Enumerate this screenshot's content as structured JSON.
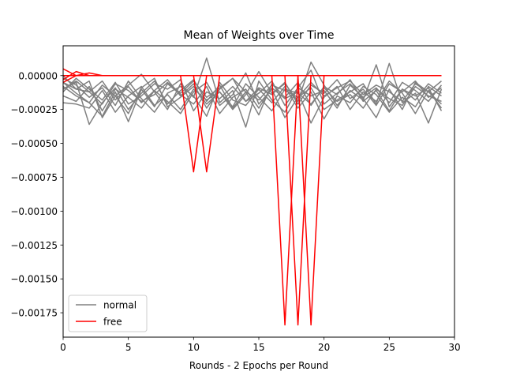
{
  "chart_data": {
    "type": "line",
    "title": "Mean of Weights over Time",
    "xlabel": "Rounds - 2 Epochs per Round",
    "ylabel": "",
    "xlim": [
      0,
      30
    ],
    "ylim": [
      -0.00193,
      0.00022
    ],
    "xticks": [
      0,
      5,
      10,
      15,
      20,
      25,
      30
    ],
    "xtick_labels": [
      "0",
      "5",
      "10",
      "15",
      "20",
      "25",
      "30"
    ],
    "yticks": [
      0.0,
      -0.00025,
      -0.0005,
      -0.00075,
      -0.001,
      -0.00125,
      -0.0015,
      -0.00175
    ],
    "ytick_labels": [
      "0.00000",
      "−0.00025",
      "−0.00050",
      "−0.00075",
      "−0.00100",
      "−0.00125",
      "−0.00150",
      "−0.00175"
    ],
    "grid": false,
    "legend": {
      "placement": "lower-left",
      "entries": [
        {
          "label": "normal",
          "color": "#808080"
        },
        {
          "label": "free",
          "color": "#ff0000"
        }
      ]
    },
    "x": [
      0,
      1,
      2,
      3,
      4,
      5,
      6,
      7,
      8,
      9,
      10,
      11,
      12,
      13,
      14,
      15,
      16,
      17,
      18,
      19,
      20,
      21,
      22,
      23,
      24,
      25,
      26,
      27,
      28,
      29
    ],
    "series": [
      {
        "group": "normal",
        "color": "#808080",
        "values": [
          -5e-05,
          -0.0001,
          -0.00012,
          -4e-05,
          -0.00018,
          -8e-05,
          -0.0002,
          -0.00011,
          -3e-05,
          -0.00015,
          -6e-05,
          -0.00024,
          -0.0001,
          -2e-05,
          -0.00019,
          -9e-05,
          -0.00014,
          -5e-05,
          -0.00021,
          -7e-05,
          -0.00013,
          -3e-05,
          -0.00017,
          -0.0001,
          -0.00022,
          -6e-05,
          -0.00012,
          -4e-05,
          -0.00016,
          -9e-05
        ]
      },
      {
        "group": "normal",
        "color": "#808080",
        "values": [
          -0.0002,
          -0.00021,
          -0.00024,
          -0.00011,
          -0.00027,
          -0.00015,
          -8e-05,
          -0.00022,
          -0.00014,
          -0.00025,
          -0.0001,
          -0.00018,
          -0.00012,
          -0.00023,
          -6e-05,
          -0.00016,
          -0.00026,
          -0.0001,
          -0.00013,
          -0.00021,
          -9e-05,
          -0.00019,
          -0.00014,
          -0.00024,
          -0.0001,
          -0.00017,
          -0.00022,
          -8e-05,
          -0.00015,
          -0.00019
        ]
      },
      {
        "group": "normal",
        "color": "#808080",
        "values": [
          -0.0001,
          -5e-05,
          -0.00036,
          -0.0002,
          -9e-05,
          -0.00025,
          -0.00013,
          -4e-05,
          -0.00021,
          -0.00011,
          -3e-05,
          -0.00019,
          -7e-05,
          -0.00024,
          -0.00012,
          -0.00029,
          -6e-05,
          -0.00016,
          -5e-05,
          -0.00022,
          -8e-05,
          -0.00014,
          -3e-05,
          -0.00019,
          -0.00011,
          -0.00026,
          -0.0001,
          -0.00018,
          -6e-05,
          -0.00013
        ]
      },
      {
        "group": "normal",
        "color": "#808080",
        "values": [
          0.0,
          -0.0001,
          -4e-05,
          -0.00031,
          -0.00015,
          -7e-05,
          1e-05,
          -0.00012,
          -0.00025,
          -6e-05,
          -0.00016,
          0.00013,
          -0.0002,
          -0.00011,
          -0.00038,
          -4e-05,
          -0.00018,
          -0.00027,
          -9e-05,
          4e-05,
          -0.00021,
          -0.00013,
          -6e-05,
          -0.00017,
          -0.00031,
          -0.0001,
          -0.00025,
          -5e-05,
          -0.00012,
          -0.00021
        ]
      },
      {
        "group": "normal",
        "color": "#808080",
        "values": [
          -8e-05,
          -0.00015,
          -0.0002,
          -0.0003,
          -0.00012,
          -0.00034,
          -0.0001,
          -0.00023,
          -6e-05,
          -0.00014,
          -0.00021,
          -8e-05,
          -0.00028,
          -0.00016,
          -0.0001,
          -0.00024,
          -9e-05,
          -0.00017,
          -0.00012,
          -0.00035,
          -0.00016,
          -8e-05,
          -0.00025,
          -0.00012,
          -0.00019,
          -4e-05,
          -0.00013,
          -0.00028,
          -0.00011,
          -0.00024
        ]
      },
      {
        "group": "normal",
        "color": "#808080",
        "values": [
          -0.00012,
          -2e-05,
          -0.0001,
          -0.00018,
          -5e-05,
          -0.00021,
          -0.00015,
          -6e-05,
          -0.0001,
          -3e-05,
          -0.00026,
          -0.00012,
          -0.00017,
          -8e-05,
          -0.00019,
          -0.00013,
          -4e-05,
          -0.00022,
          -9e-05,
          -0.00015,
          -0.00011,
          -0.00024,
          -7e-05,
          -0.00016,
          -9e-05,
          -0.0002,
          -5e-05,
          -0.00011,
          -0.00019,
          -7e-05
        ]
      },
      {
        "group": "normal",
        "color": "#808080",
        "values": [
          -2e-05,
          -7e-05,
          -0.00016,
          -9e-05,
          -0.00022,
          -4e-05,
          -0.00017,
          -0.00027,
          -0.00013,
          -8e-05,
          -0.00015,
          -0.0003,
          -5e-05,
          -0.00018,
          -0.00022,
          -0.0001,
          -0.0002,
          -8e-05,
          -0.00024,
          -0.00012,
          -0.00032,
          -0.00015,
          -0.0002,
          -8e-05,
          -0.00014,
          -0.00027,
          -0.00016,
          -0.00023,
          -8e-05,
          -0.00015
        ]
      },
      {
        "group": "normal",
        "color": "#808080",
        "values": [
          -0.00015,
          -0.00019,
          -8e-05,
          -0.00026,
          -0.0001,
          -0.00016,
          -0.00024,
          -0.00011,
          -0.00019,
          -0.00028,
          -0.00012,
          -5e-05,
          -0.00022,
          -0.00014,
          2e-05,
          -0.00021,
          -0.0001,
          -0.00031,
          -0.00016,
          -9e-05,
          -0.00025,
          -0.00018,
          -0.00012,
          -6e-05,
          -0.00021,
          9e-05,
          -0.0002,
          -0.00013,
          -0.00035,
          -0.0001
        ]
      },
      {
        "group": "normal",
        "color": "#808080",
        "values": [
          -5e-05,
          -0.00013,
          -0.0002,
          -7e-05,
          -0.00015,
          -0.00028,
          -9e-05,
          -2e-05,
          -0.00023,
          -0.00016,
          -8e-05,
          -0.00021,
          -0.00012,
          -0.00025,
          -0.00014,
          3e-05,
          -0.00013,
          -6e-05,
          -0.00019,
          0.0001,
          -7e-05,
          -0.00022,
          -0.00011,
          -0.00018,
          8e-05,
          -0.00023,
          -0.0001,
          -0.00015,
          -9e-05,
          -0.00026
        ]
      },
      {
        "group": "normal",
        "color": "#808080",
        "values": [
          -0.0001,
          -4e-05,
          -0.00012,
          -0.00021,
          -6e-05,
          -0.00011,
          -0.00019,
          -0.00014,
          -5e-05,
          -0.00013,
          -4e-05,
          -0.00016,
          -9e-05,
          -2e-05,
          -0.00012,
          -0.00018,
          -7e-05,
          -0.00011,
          -0.00016,
          -5e-05,
          -0.00015,
          -9e-05,
          -4e-05,
          -0.00014,
          -7e-05,
          -0.00012,
          -0.00019,
          -6e-05,
          -0.00012,
          -4e-05
        ]
      },
      {
        "group": "free",
        "color": "#ff0000",
        "values": [
          5e-05,
          0.0,
          0.0,
          0.0,
          0.0,
          0.0,
          0.0,
          0.0,
          0.0,
          0.0,
          0.0,
          0.0,
          0.0,
          0.0,
          0.0,
          0.0,
          0.0,
          -0.00184,
          0.0,
          0.0,
          0.0,
          0.0,
          0.0,
          0.0,
          0.0,
          0.0,
          0.0,
          0.0,
          0.0,
          0.0
        ]
      },
      {
        "group": "free",
        "color": "#ff0000",
        "values": [
          -3e-05,
          3e-05,
          0.0,
          0.0,
          0.0,
          0.0,
          0.0,
          0.0,
          0.0,
          0.0,
          0.0,
          0.0,
          0.0,
          0.0,
          0.0,
          0.0,
          0.0,
          0.0,
          -0.00184,
          0.0,
          0.0,
          0.0,
          0.0,
          0.0,
          0.0,
          0.0,
          0.0,
          0.0,
          0.0,
          0.0
        ]
      },
      {
        "group": "free",
        "color": "#ff0000",
        "values": [
          -5e-05,
          0.0,
          2e-05,
          0.0,
          0.0,
          0.0,
          0.0,
          0.0,
          0.0,
          0.0,
          0.0,
          0.0,
          0.0,
          0.0,
          0.0,
          0.0,
          0.0,
          0.0,
          0.0,
          -0.00184,
          0.0,
          0.0,
          0.0,
          0.0,
          0.0,
          0.0,
          0.0,
          0.0,
          0.0,
          0.0
        ]
      },
      {
        "group": "free",
        "color": "#ff0000",
        "values": [
          0.0,
          0.0,
          0.0,
          0.0,
          0.0,
          0.0,
          0.0,
          0.0,
          0.0,
          0.0,
          -0.00071,
          0.0,
          0.0,
          0.0,
          0.0,
          0.0,
          0.0,
          0.0,
          0.0,
          0.0,
          0.0,
          0.0,
          0.0,
          0.0,
          0.0,
          0.0,
          0.0,
          0.0,
          0.0,
          0.0
        ]
      },
      {
        "group": "free",
        "color": "#ff0000",
        "values": [
          0.0,
          0.0,
          0.0,
          0.0,
          0.0,
          0.0,
          0.0,
          0.0,
          0.0,
          0.0,
          0.0,
          -0.00071,
          0.0,
          0.0,
          0.0,
          0.0,
          0.0,
          0.0,
          0.0,
          0.0,
          0.0,
          0.0,
          0.0,
          0.0,
          0.0,
          0.0,
          0.0,
          0.0,
          0.0,
          0.0
        ]
      }
    ]
  }
}
